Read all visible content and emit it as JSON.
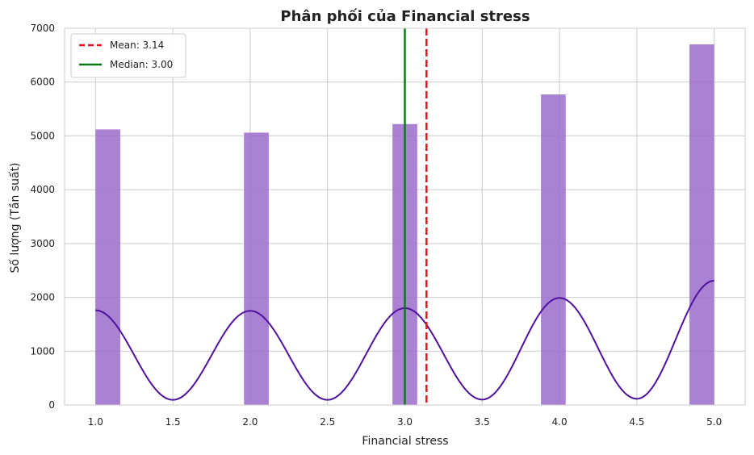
{
  "chart_data": {
    "type": "histogram",
    "title": "Phân phối của Financial stress",
    "xlabel": "Financial stress",
    "ylabel": "Số lượng (Tần suất)",
    "xlim": [
      0.8,
      5.2
    ],
    "ylim": [
      0,
      7000
    ],
    "xticks": [
      "1.0",
      "1.5",
      "2.0",
      "2.5",
      "3.0",
      "3.5",
      "4.0",
      "4.5",
      "5.0"
    ],
    "yticks": [
      "0",
      "1000",
      "2000",
      "3000",
      "4000",
      "5000",
      "6000",
      "7000"
    ],
    "grid": true,
    "bar_color": "#9b6ccd",
    "bars": [
      {
        "x0": 1.0,
        "x1": 1.16,
        "count": 5120
      },
      {
        "x0": 1.96,
        "x1": 2.12,
        "count": 5060
      },
      {
        "x0": 2.92,
        "x1": 3.08,
        "count": 5220
      },
      {
        "x0": 3.88,
        "x1": 4.04,
        "count": 5770
      },
      {
        "x0": 4.84,
        "x1": 5.0,
        "count": 6700
      }
    ],
    "kde": {
      "color": "#5010a0",
      "peaks": [
        {
          "x": 1.0,
          "y": 1760
        },
        {
          "x": 2.0,
          "y": 1750
        },
        {
          "x": 3.0,
          "y": 1800
        },
        {
          "x": 4.0,
          "y": 1990
        },
        {
          "x": 5.0,
          "y": 2310
        }
      ],
      "troughs": [
        {
          "x": 1.5,
          "y": 95
        },
        {
          "x": 2.5,
          "y": 95
        },
        {
          "x": 3.5,
          "y": 100
        },
        {
          "x": 4.5,
          "y": 115
        }
      ]
    },
    "lines": [
      {
        "name": "Mean: 3.14",
        "x": 3.14,
        "color": "#e8141c",
        "style": "dashed"
      },
      {
        "name": "Median: 3.00",
        "x": 3.0,
        "color": "#0a7a12",
        "style": "solid"
      }
    ],
    "legend_position": "top-left"
  }
}
